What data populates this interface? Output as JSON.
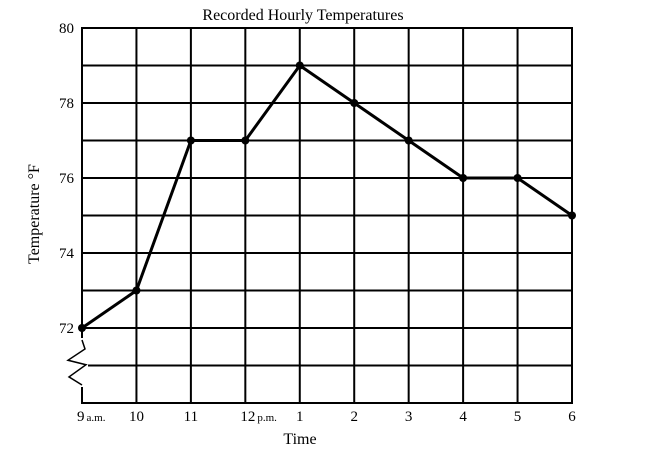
{
  "chart_data": {
    "type": "line",
    "title": "Recorded Hourly Temperatures",
    "xlabel": "Time",
    "ylabel": "Temperature °F",
    "categories": [
      "9",
      "10",
      "11",
      "12",
      "1",
      "2",
      "3",
      "4",
      "5",
      "6"
    ],
    "category_suffixes": [
      "a.m.",
      "",
      "",
      "p.m.",
      "",
      "",
      "",
      "",
      "",
      ""
    ],
    "y_ticks": [
      72,
      74,
      76,
      78,
      80
    ],
    "ylim": [
      70,
      80
    ],
    "axis_break": true,
    "grid": true,
    "series": [
      {
        "values": [
          72,
          73,
          77,
          77,
          79,
          78,
          77,
          76,
          76,
          75
        ]
      }
    ]
  }
}
